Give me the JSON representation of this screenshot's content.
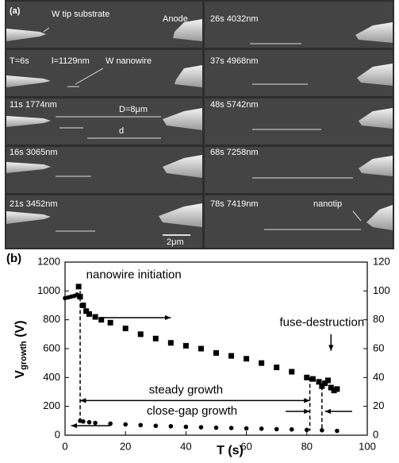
{
  "panel_a": {
    "labels": [
      "(a)",
      "W tip substrate",
      "Anode",
      "26s  4032nm",
      "T=6s",
      "l=1129nm",
      "W nanowire",
      "37s  4968nm",
      "11s  1774nm",
      "D=8μm",
      "48s  5742nm",
      "16s  3065nm",
      "68s  7258nm",
      "21s  3452nm",
      "78s  7419nm",
      "nanotip",
      "d",
      "2μm"
    ]
  },
  "chart_data": {
    "type": "scatter",
    "panel_label": "(b)",
    "ylabel": {
      "main": "V",
      "sub": "growth",
      "unit": " (V)"
    },
    "xlabel": "T (s)",
    "xlim": [
      0,
      100
    ],
    "xticks": [
      0,
      20,
      40,
      60,
      80,
      100
    ],
    "ylim": [
      0,
      1200
    ],
    "yticks": [
      0,
      200,
      400,
      600,
      800,
      1000,
      1200
    ],
    "y2lim": [
      0,
      120
    ],
    "y2ticks": [
      0,
      20,
      40,
      60,
      80,
      100,
      120
    ],
    "annotations": [
      "nanowire initiation",
      "steady growth",
      "close-gap growth",
      "fuse-destruction"
    ],
    "series": [
      {
        "color": "#000000",
        "marker": "circle",
        "axis": "y",
        "x": [
          0,
          1,
          2,
          3,
          4,
          4.5,
          5,
          6,
          8,
          10,
          15,
          20,
          25,
          30,
          35,
          40,
          45,
          50,
          55,
          60,
          65,
          70,
          75,
          80,
          85,
          90
        ],
        "values": [
          950,
          955,
          960,
          965,
          975,
          960,
          100,
          95,
          90,
          85,
          80,
          75,
          70,
          65,
          62,
          58,
          55,
          52,
          50,
          47,
          45,
          42,
          40,
          37,
          34,
          30
        ]
      },
      {
        "color": "#000000",
        "marker": "square",
        "axis": "y2",
        "x": [
          4.5,
          5,
          6,
          7,
          8,
          10,
          12,
          15,
          20,
          25,
          30,
          35,
          40,
          45,
          50,
          55,
          60,
          65,
          70,
          75,
          80,
          82,
          84,
          85,
          86,
          87,
          88,
          89,
          90
        ],
        "values": [
          103,
          96,
          90,
          86,
          84,
          82,
          80,
          78,
          74,
          70,
          67,
          64,
          62,
          60,
          57,
          55,
          53,
          50,
          47,
          44,
          40,
          39,
          37,
          34,
          36,
          38,
          33,
          31,
          32
        ]
      }
    ]
  }
}
